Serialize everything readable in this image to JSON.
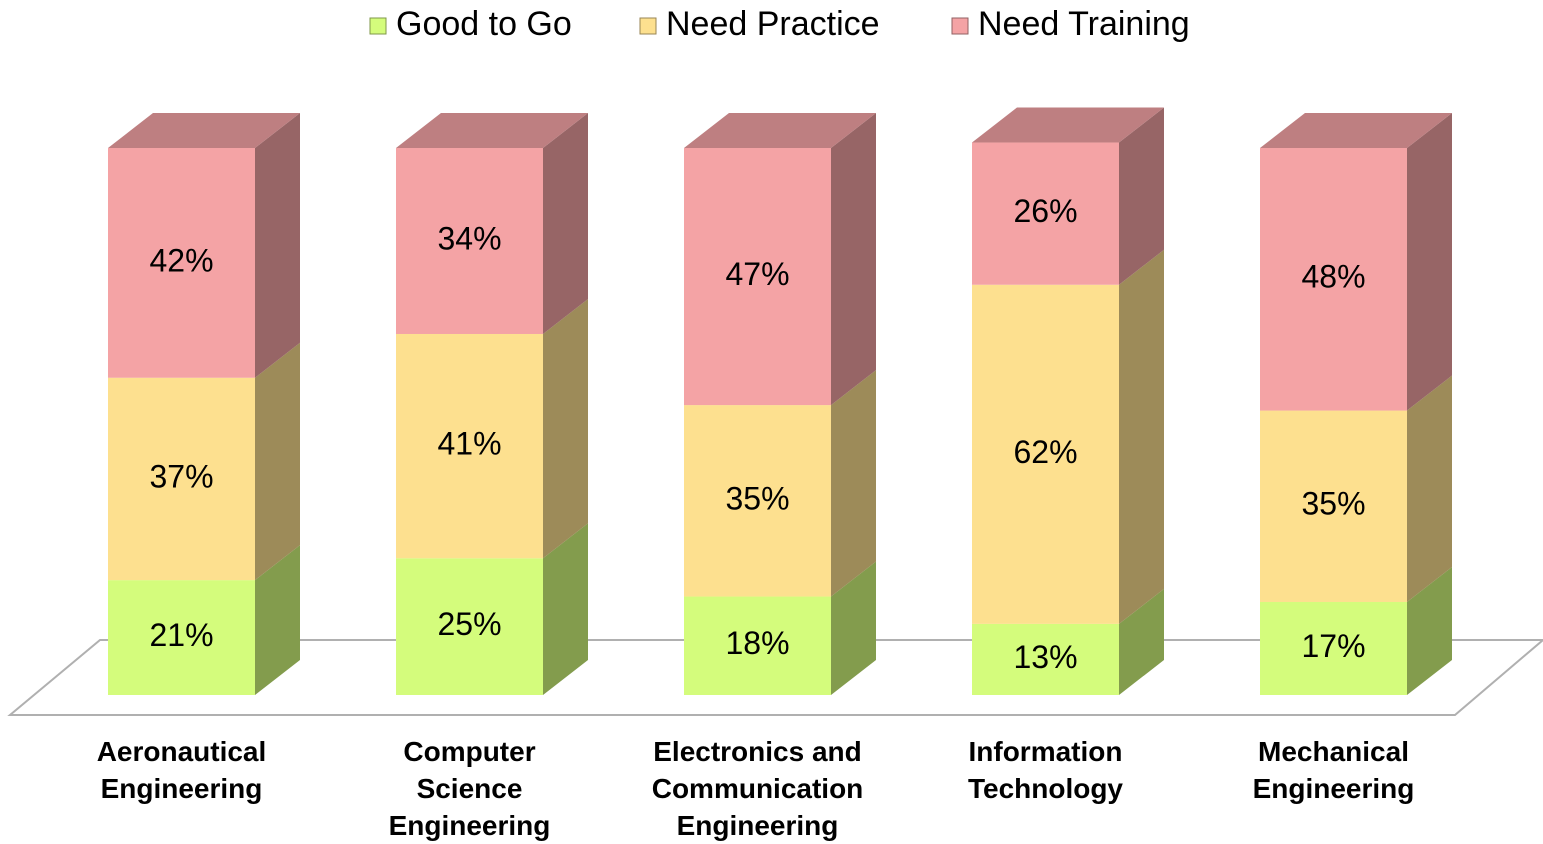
{
  "chart_data": {
    "type": "stacked_bar_3d",
    "categories": [
      "Aeronautical\nEngineering",
      "Computer\nScience\nEngineering",
      "Electronics and\nCommunication\nEngineering",
      "Information\nTechnology",
      "Mechanical\nEngineering"
    ],
    "series": [
      {
        "name": "Good to Go",
        "color": "#d4fc7c",
        "values": [
          21,
          25,
          18,
          13,
          17
        ],
        "value_labels": [
          "21%",
          "25%",
          "18%",
          "13%",
          "17%"
        ]
      },
      {
        "name": "Need Practice",
        "color": "#fde08f",
        "values": [
          37,
          41,
          35,
          62,
          35
        ],
        "value_labels": [
          "37%",
          "41%",
          "35%",
          "62%",
          "35%"
        ]
      },
      {
        "name": "Need Training",
        "color": "#f4a3a5",
        "values": [
          42,
          34,
          47,
          26,
          48
        ],
        "value_labels": [
          "42%",
          "34%",
          "47%",
          "26%",
          "48%"
        ]
      }
    ],
    "legend": "top"
  }
}
